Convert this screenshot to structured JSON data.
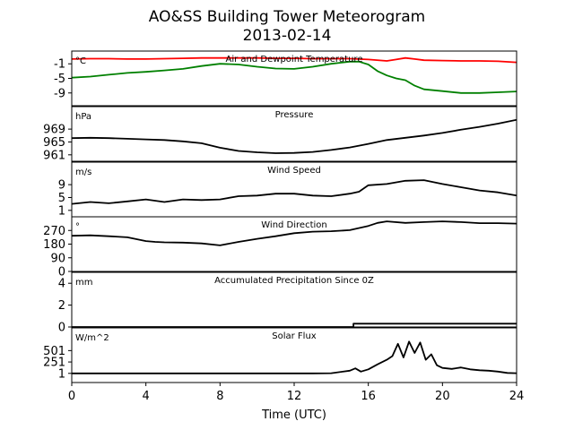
{
  "figure": {
    "title_line1": "AO&SS Building Tower Meteorogram",
    "title_line2": "2013-02-14",
    "xlabel": "Time (UTC)",
    "xticks": [
      0,
      4,
      8,
      12,
      16,
      20,
      24
    ],
    "xlim": [
      0,
      24
    ]
  },
  "chart_data": [
    {
      "type": "line",
      "title": "Air and Dewpoint Temperature",
      "ylabel": "°C",
      "ylim": [
        -12.5,
        2.5
      ],
      "yticks": [
        -1,
        -5,
        -9
      ],
      "series": [
        {
          "color": "#ff0000",
          "x": [
            0,
            1,
            2,
            3,
            4,
            5,
            6,
            7,
            8,
            9,
            10,
            11,
            12,
            13,
            14,
            15,
            16,
            17,
            17.5,
            18,
            18.5,
            19,
            20,
            21,
            22,
            23,
            24
          ],
          "values": [
            0.3,
            0.4,
            0.4,
            0.3,
            0.3,
            0.4,
            0.5,
            0.6,
            0.6,
            0.6,
            0.6,
            0.5,
            0.5,
            0.4,
            0.4,
            0.4,
            0.2,
            -0.2,
            0.2,
            0.6,
            0.3,
            0.0,
            -0.1,
            -0.2,
            -0.2,
            -0.3,
            -0.6
          ]
        },
        {
          "color": "#008000",
          "x": [
            0,
            1,
            2,
            3,
            4,
            5,
            6,
            7,
            8,
            9,
            10,
            11,
            12,
            13,
            14,
            15,
            15.5,
            16,
            16.5,
            17,
            17.5,
            18,
            18.5,
            19,
            20,
            21,
            22,
            23,
            24
          ],
          "values": [
            -4.8,
            -4.5,
            -4.0,
            -3.5,
            -3.2,
            -2.8,
            -2.4,
            -1.6,
            -1.0,
            -1.2,
            -1.8,
            -2.3,
            -2.4,
            -1.8,
            -1.0,
            -0.4,
            -0.4,
            -1.2,
            -3.0,
            -4.2,
            -5.0,
            -5.5,
            -7.0,
            -8.0,
            -8.5,
            -9.0,
            -9.0,
            -8.8,
            -8.6
          ]
        }
      ]
    },
    {
      "type": "line",
      "title": "Pressure",
      "ylabel": "hPa",
      "ylim": [
        959,
        976
      ],
      "yticks": [
        969,
        965,
        961
      ],
      "series": [
        {
          "color": "#000000",
          "x": [
            0,
            1,
            2,
            3,
            4,
            5,
            6,
            7,
            8,
            9,
            10,
            11,
            12,
            13,
            14,
            15,
            16,
            17,
            18,
            19,
            20,
            21,
            22,
            23,
            24
          ],
          "values": [
            966.2,
            966.3,
            966.2,
            966.0,
            965.8,
            965.6,
            965.2,
            964.6,
            963.2,
            962.2,
            961.8,
            961.5,
            961.6,
            961.9,
            962.5,
            963.3,
            964.4,
            965.6,
            966.3,
            967.0,
            967.8,
            968.8,
            969.7,
            970.7,
            971.9
          ]
        }
      ]
    },
    {
      "type": "line",
      "title": "Wind Speed",
      "ylabel": "m/s",
      "ylim": [
        -1,
        16
      ],
      "yticks": [
        9,
        5,
        1
      ],
      "series": [
        {
          "color": "#000000",
          "x": [
            0,
            1,
            2,
            3,
            4,
            5,
            6,
            7,
            8,
            9,
            10,
            11,
            12,
            13,
            14,
            15,
            15.5,
            16,
            17,
            18,
            19,
            20,
            21,
            22,
            23,
            24
          ],
          "values": [
            3.0,
            3.6,
            3.2,
            3.8,
            4.4,
            3.6,
            4.4,
            4.2,
            4.4,
            5.4,
            5.6,
            6.2,
            6.2,
            5.6,
            5.4,
            6.2,
            6.8,
            8.8,
            9.2,
            10.2,
            10.4,
            9.2,
            8.2,
            7.2,
            6.6,
            5.6
          ]
        }
      ]
    },
    {
      "type": "line",
      "title": "Wind Direction",
      "ylabel": "°",
      "ylim": [
        0,
        360
      ],
      "yticks": [
        270,
        180,
        90,
        0
      ],
      "series": [
        {
          "color": "#000000",
          "x": [
            0,
            1,
            2,
            3,
            4,
            4.5,
            5,
            6,
            7,
            8,
            9,
            10,
            11,
            12,
            13,
            14,
            15,
            16,
            16.5,
            17,
            18,
            19,
            20,
            21,
            22,
            23,
            24
          ],
          "values": [
            235,
            238,
            232,
            225,
            200,
            195,
            192,
            190,
            185,
            172,
            195,
            215,
            232,
            252,
            262,
            265,
            272,
            300,
            320,
            330,
            320,
            325,
            330,
            325,
            318,
            318,
            315
          ]
        }
      ]
    },
    {
      "type": "line",
      "title": "Accumulated Precipitation Since 0Z",
      "ylabel": "mm",
      "ylim": [
        0,
        5
      ],
      "yticks": [
        4,
        2,
        0
      ],
      "series": [
        {
          "color": "#000000",
          "x": [
            0,
            15.2,
            15.2,
            24
          ],
          "values": [
            0,
            0,
            0.3,
            0.3
          ]
        }
      ]
    },
    {
      "type": "line",
      "title": "Solar Flux",
      "ylabel": "W/m^2",
      "ylim": [
        -200,
        1000
      ],
      "yticks": [
        501,
        251,
        1
      ],
      "series": [
        {
          "color": "#000000",
          "x": [
            0,
            13,
            14,
            15,
            15.3,
            15.6,
            16,
            16.5,
            17,
            17.3,
            17.6,
            17.9,
            18.2,
            18.5,
            18.8,
            19.1,
            19.4,
            19.7,
            20,
            20.5,
            21,
            21.5,
            22,
            22.5,
            23,
            23.5,
            24
          ],
          "values": [
            1,
            1,
            5,
            60,
            110,
            40,
            90,
            200,
            300,
            380,
            650,
            350,
            700,
            450,
            680,
            300,
            420,
            180,
            120,
            100,
            130,
            90,
            70,
            60,
            40,
            10,
            5
          ]
        }
      ]
    }
  ]
}
